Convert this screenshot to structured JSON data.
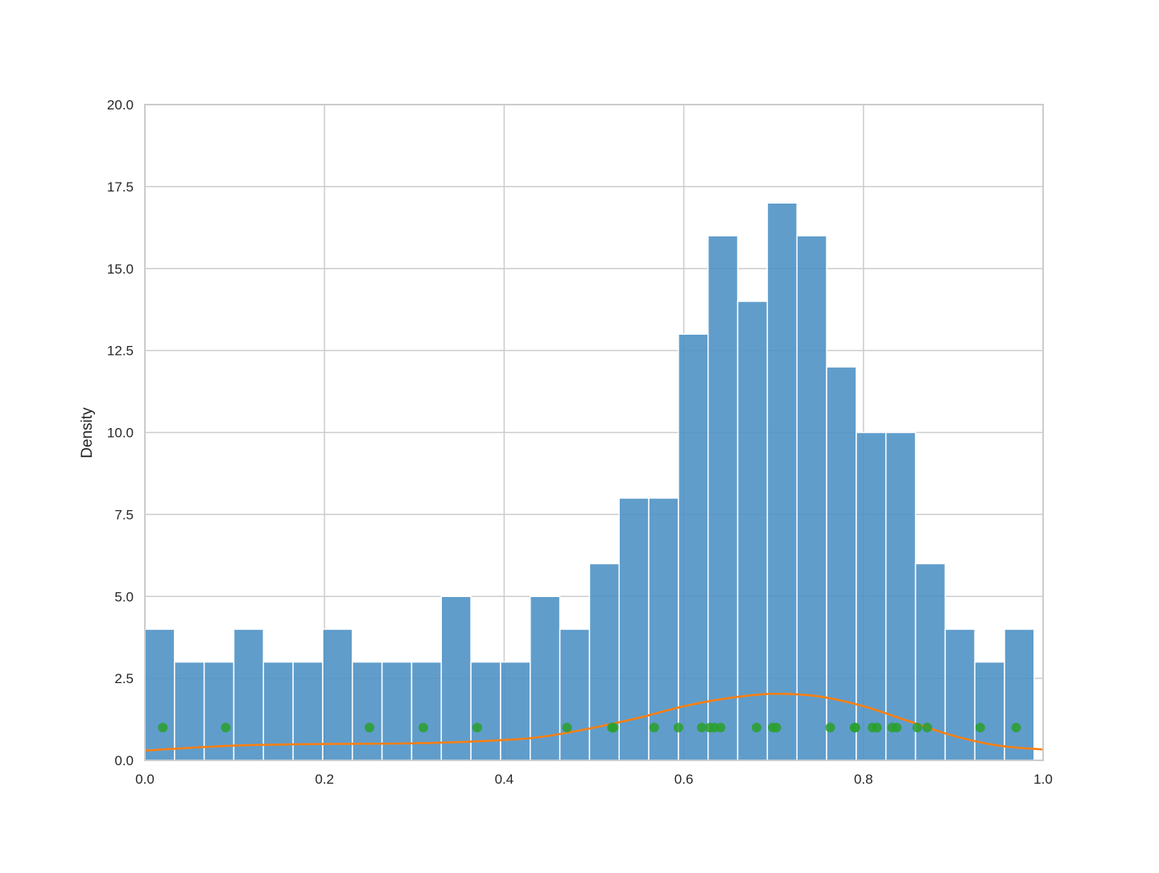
{
  "chart_data": {
    "type": "bar",
    "title": "",
    "xlabel": "",
    "ylabel": "Density",
    "xlim": [
      0.0,
      1.0
    ],
    "ylim": [
      0.0,
      20.0
    ],
    "grid": true,
    "x_ticks": [
      "0.0",
      "0.2",
      "0.4",
      "0.6",
      "0.8",
      "1.0"
    ],
    "y_ticks": [
      "0.0",
      "2.5",
      "5.0",
      "7.5",
      "10.0",
      "12.5",
      "15.0",
      "17.5",
      "20.0"
    ],
    "histogram": {
      "bin_start": 0.0,
      "bin_width": 0.033,
      "values": [
        4,
        3,
        3,
        4,
        3,
        3,
        4,
        3,
        3,
        3,
        5,
        3,
        3,
        5,
        4,
        6,
        8,
        8,
        13,
        16,
        14,
        17,
        16,
        12,
        10,
        10,
        6,
        4,
        3,
        4
      ],
      "color": "#4a8fc4"
    },
    "kde_line": {
      "x": [
        0.0,
        0.1,
        0.2,
        0.3,
        0.4,
        0.45,
        0.5,
        0.55,
        0.6,
        0.65,
        0.7,
        0.75,
        0.8,
        0.85,
        0.9,
        0.95,
        1.0
      ],
      "y": [
        0.3,
        0.45,
        0.5,
        0.52,
        0.62,
        0.75,
        1.0,
        1.3,
        1.65,
        1.9,
        2.03,
        1.95,
        1.65,
        1.2,
        0.75,
        0.45,
        0.33
      ],
      "color": "#ff7f0e"
    },
    "scatter": {
      "y": 1,
      "x": [
        0.02,
        0.09,
        0.25,
        0.31,
        0.37,
        0.47,
        0.52,
        0.522,
        0.567,
        0.594,
        0.62,
        0.629,
        0.634,
        0.641,
        0.681,
        0.699,
        0.703,
        0.763,
        0.79,
        0.791,
        0.81,
        0.815,
        0.832,
        0.837,
        0.86,
        0.871,
        0.93,
        0.97
      ],
      "color": "#2ca02c"
    }
  }
}
